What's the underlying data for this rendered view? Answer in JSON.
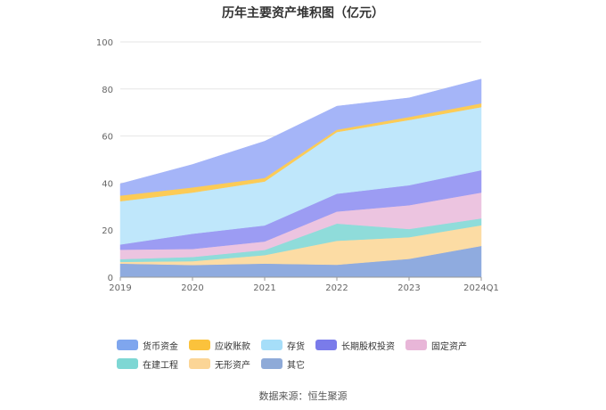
{
  "title": "历年主要资产堆积图（亿元）",
  "source": "数据来源：恒生聚源",
  "chart_data": {
    "type": "area",
    "stacked": true,
    "categories": [
      "2019",
      "2020",
      "2021",
      "2022",
      "2023",
      "2024Q1"
    ],
    "ylim": [
      0,
      100
    ],
    "yticks": [
      0,
      20,
      40,
      60,
      80,
      100
    ],
    "grid": true,
    "legend_position": "bottom",
    "series": [
      {
        "name": "其它",
        "color": "#8fabdf",
        "values": [
          5.8,
          5.2,
          5.8,
          5.3,
          7.8,
          13.3
        ]
      },
      {
        "name": "无形资产",
        "color": "#fcdca4",
        "values": [
          0.7,
          1.6,
          3.6,
          10.2,
          9.2,
          8.8
        ]
      },
      {
        "name": "在建工程",
        "color": "#8fdcda",
        "values": [
          1.2,
          1.8,
          2.2,
          7.3,
          3.5,
          2.9
        ]
      },
      {
        "name": "固定资产",
        "color": "#ecc4e0",
        "values": [
          4.0,
          3.4,
          3.6,
          5.1,
          10.1,
          11.0
        ]
      },
      {
        "name": "长期股权投资",
        "color": "#9c9cf3",
        "values": [
          2.2,
          6.5,
          6.8,
          7.6,
          8.5,
          9.5
        ]
      },
      {
        "name": "存货",
        "color": "#bfe7fb",
        "values": [
          18.4,
          17.5,
          18.7,
          26.2,
          27.7,
          26.8
        ]
      },
      {
        "name": "应收账款",
        "color": "#fccb56",
        "values": [
          2.4,
          2.2,
          1.5,
          1.0,
          1.3,
          1.6
        ]
      },
      {
        "name": "货币资金",
        "color": "#a5b5f8",
        "values": [
          5.0,
          9.7,
          15.6,
          10.0,
          8.1,
          10.3
        ]
      }
    ]
  },
  "legend": [
    {
      "label": "货币资金",
      "color": "#7fa6ee"
    },
    {
      "label": "应收账款",
      "color": "#fbc23c"
    },
    {
      "label": "存货",
      "color": "#a6def9"
    },
    {
      "label": "长期股权投资",
      "color": "#7a7bea"
    },
    {
      "label": "固定资产",
      "color": "#e8b6d8"
    },
    {
      "label": "在建工程",
      "color": "#7ed7d4"
    },
    {
      "label": "无形资产",
      "color": "#fbd596"
    },
    {
      "label": "其它",
      "color": "#8eaad8"
    }
  ]
}
